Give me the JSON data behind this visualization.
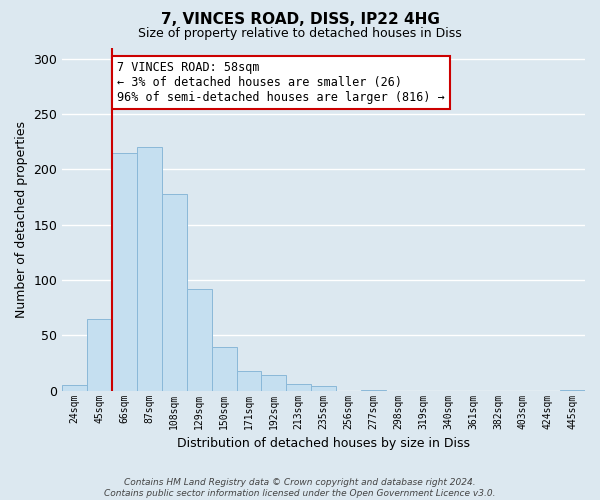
{
  "title": "7, VINCES ROAD, DISS, IP22 4HG",
  "subtitle": "Size of property relative to detached houses in Diss",
  "xlabel": "Distribution of detached houses by size in Diss",
  "ylabel": "Number of detached properties",
  "categories": [
    "24sqm",
    "45sqm",
    "66sqm",
    "87sqm",
    "108sqm",
    "129sqm",
    "150sqm",
    "171sqm",
    "192sqm",
    "213sqm",
    "235sqm",
    "256sqm",
    "277sqm",
    "298sqm",
    "319sqm",
    "340sqm",
    "361sqm",
    "382sqm",
    "403sqm",
    "424sqm",
    "445sqm"
  ],
  "bar_heights": [
    5,
    65,
    215,
    220,
    178,
    92,
    39,
    18,
    14,
    6,
    4,
    0,
    1,
    0,
    0,
    0,
    0,
    0,
    0,
    0,
    1
  ],
  "bar_color": "#c5dff0",
  "bar_edge_color": "#8ab8d8",
  "vline_x": 1.5,
  "vline_color": "#cc0000",
  "annotation_text": "7 VINCES ROAD: 58sqm\n← 3% of detached houses are smaller (26)\n96% of semi-detached houses are larger (816) →",
  "annotation_box_color": "#ffffff",
  "annotation_box_edgecolor": "#cc0000",
  "ylim": [
    0,
    310
  ],
  "yticks": [
    0,
    50,
    100,
    150,
    200,
    250,
    300
  ],
  "footer_text": "Contains HM Land Registry data © Crown copyright and database right 2024.\nContains public sector information licensed under the Open Government Licence v3.0.",
  "background_color": "#dce8f0",
  "plot_bg_color": "#dce8f0",
  "grid_color": "#ffffff"
}
